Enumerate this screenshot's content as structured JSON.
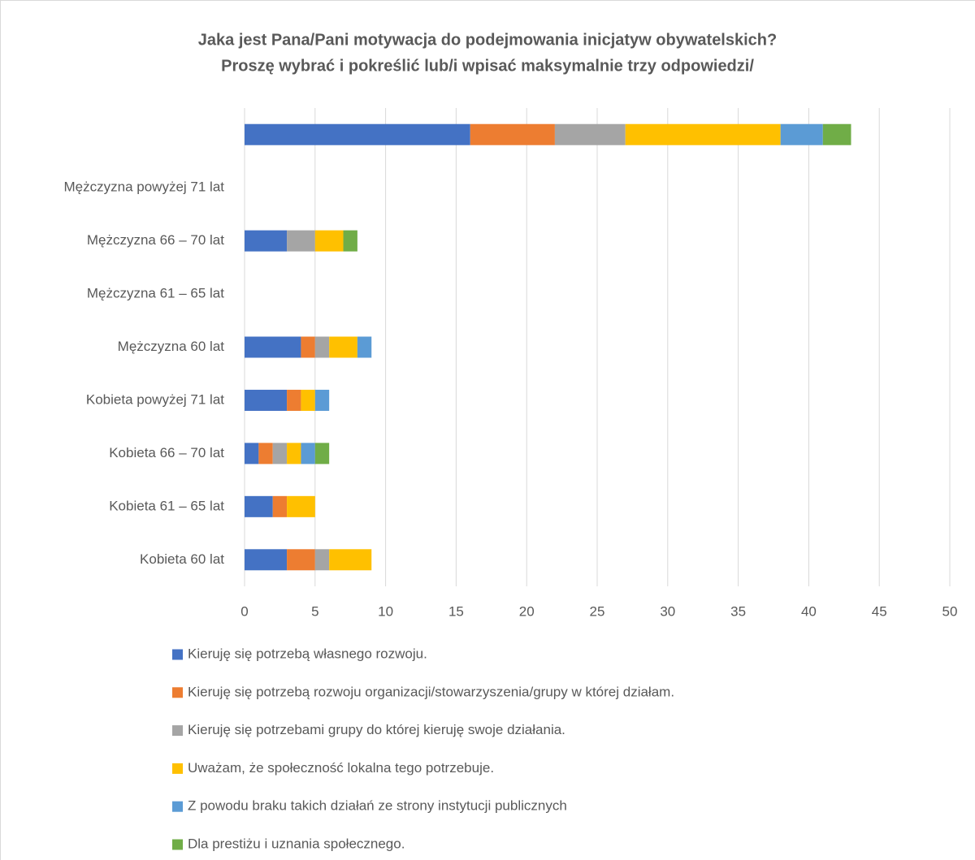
{
  "chart_data": {
    "type": "stacked-bar-horizontal",
    "title": [
      "Jaka jest Pana/Pani motywacja do podejmowania inicjatyw obywatelskich?",
      "Proszę wybrać i pokreślić lub/i wpisać maksymalnie trzy odpowiedzi/"
    ],
    "categories": [
      "Kobieta 60 lat",
      "Kobieta 61 – 65 lat",
      "Kobieta 66 – 70 lat",
      "Kobieta powyżej 71 lat",
      "Mężczyzna 60 lat",
      "Mężczyzna 61 – 65 lat",
      "Mężczyzna 66 – 70 lat",
      "Mężczyzna powyżej 71 lat",
      null
    ],
    "series": [
      {
        "name": "Kieruję się potrzebą własnego rozwoju.",
        "color": "#4472c4",
        "values": [
          3,
          2,
          1,
          3,
          4,
          0,
          3,
          0,
          16
        ]
      },
      {
        "name": "Kieruję się potrzebą rozwoju organizacji/stowarzyszenia/grupy w której działam.",
        "color": "#ed7d31",
        "values": [
          2,
          1,
          1,
          1,
          1,
          0,
          0,
          0,
          6
        ]
      },
      {
        "name": "Kieruję się potrzebami grupy do której kieruję swoje działania.",
        "color": "#a5a5a5",
        "values": [
          1,
          0,
          1,
          0,
          1,
          0,
          2,
          0,
          5
        ]
      },
      {
        "name": "Uważam, że społeczność lokalna tego potrzebuje.",
        "color": "#ffc000",
        "values": [
          3,
          2,
          1,
          1,
          2,
          0,
          2,
          0,
          11
        ]
      },
      {
        "name": "Z powodu braku takich działań ze strony instytucji publicznych",
        "color": "#5b9bd5",
        "values": [
          0,
          0,
          1,
          1,
          1,
          0,
          0,
          0,
          3
        ]
      },
      {
        "name": "Dla prestiżu i uznania społecznego.",
        "color": "#70ad47",
        "values": [
          0,
          0,
          1,
          0,
          0,
          0,
          1,
          0,
          2
        ]
      }
    ],
    "xlim": [
      0,
      50
    ],
    "xticks": [
      0,
      5,
      10,
      15,
      20,
      25,
      30,
      35,
      40,
      45,
      50
    ],
    "grid": true,
    "legend": "bottom"
  }
}
